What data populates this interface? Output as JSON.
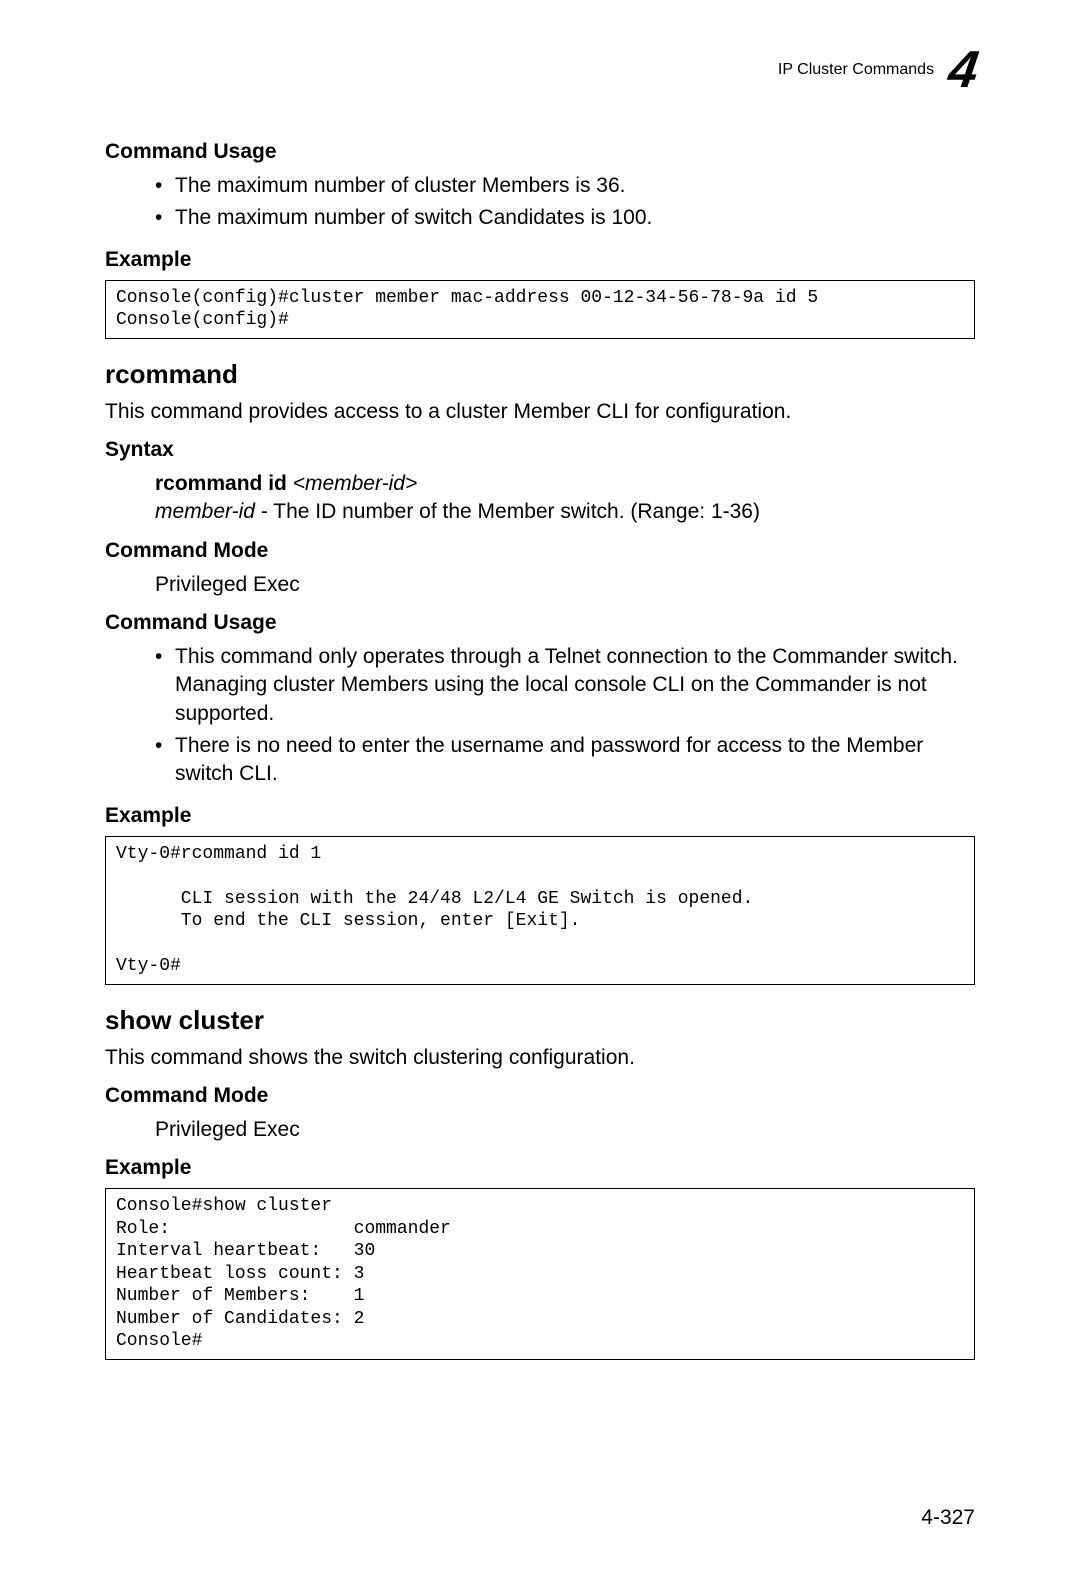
{
  "header": {
    "title": "IP Cluster Commands",
    "chapter": "4"
  },
  "section1": {
    "heading": "Command Usage",
    "bullets": [
      "The maximum number of cluster Members is 36.",
      "The maximum number of switch Candidates is 100."
    ]
  },
  "example1": {
    "heading": "Example",
    "code": "Console(config)#cluster member mac-address 00-12-34-56-78-9a id 5\nConsole(config)#"
  },
  "rcommand": {
    "title": "rcommand",
    "description": "This command provides access to a cluster Member CLI for configuration.",
    "syntax": {
      "heading": "Syntax",
      "cmd_bold": "rcommand id ",
      "cmd_italic": "<member-id>",
      "param_name": "member-id",
      "param_desc": " - The ID number of the Member switch. (Range: 1-36)"
    },
    "mode": {
      "heading": "Command Mode",
      "text": "Privileged Exec"
    },
    "usage": {
      "heading": "Command Usage",
      "bullets": [
        "This command only operates through a Telnet connection to the Commander switch. Managing cluster Members using the local console CLI on the Commander is not supported.",
        "There is no need to enter the username and password for access to the Member switch CLI."
      ]
    },
    "example": {
      "heading": "Example",
      "code": "Vty-0#rcommand id 1\n\n      CLI session with the 24/48 L2/L4 GE Switch is opened.\n      To end the CLI session, enter [Exit].\n\nVty-0#"
    }
  },
  "showcluster": {
    "title": "show cluster",
    "description": "This command shows the switch clustering configuration.",
    "mode": {
      "heading": "Command Mode",
      "text": "Privileged Exec"
    },
    "example": {
      "heading": "Example",
      "code": "Console#show cluster\nRole:                 commander\nInterval heartbeat:   30\nHeartbeat loss count: 3\nNumber of Members:    1\nNumber of Candidates: 2\nConsole#"
    }
  },
  "page_number": "4-327"
}
